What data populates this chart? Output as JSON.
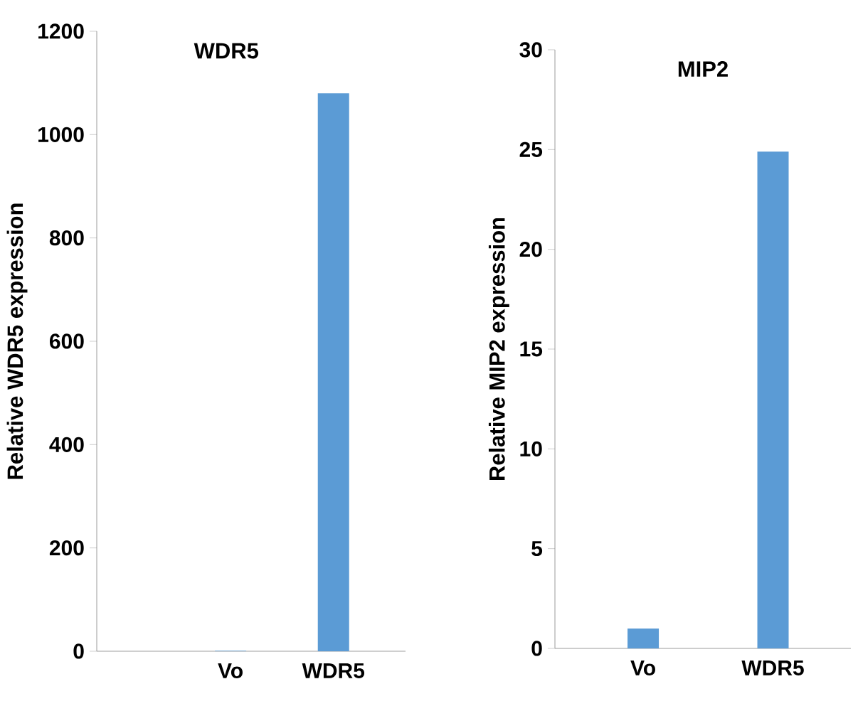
{
  "chart_data": [
    {
      "type": "bar",
      "title": "WDR5",
      "ylabel": "Relative WDR5 expression",
      "categories": [
        "Vo",
        "WDR5"
      ],
      "values": [
        1,
        1080
      ],
      "color": "#5b9bd5",
      "ylim": [
        0,
        1200
      ],
      "yticks": [
        0,
        200,
        400,
        600,
        800,
        1000,
        1200
      ],
      "grid": false
    },
    {
      "type": "bar",
      "title": "MIP2",
      "ylabel": "Relative MIP2 expression",
      "categories": [
        "Vo",
        "WDR5"
      ],
      "values": [
        1,
        24.9
      ],
      "color": "#5b9bd5",
      "ylim": [
        0,
        30
      ],
      "yticks": [
        0,
        5,
        10,
        15,
        20,
        25,
        30
      ],
      "grid": false
    }
  ]
}
